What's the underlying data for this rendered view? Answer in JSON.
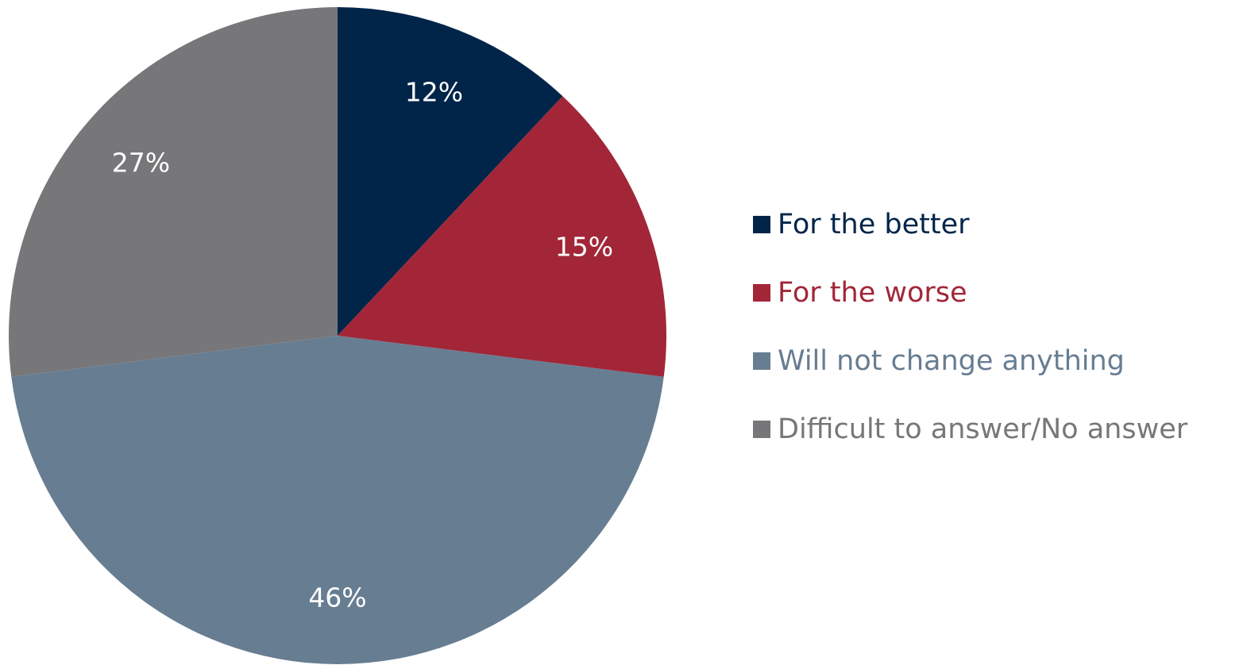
{
  "chart_data": {
    "type": "pie",
    "title": "",
    "start_angle_deg": 0,
    "direction": "clockwise",
    "legend_position": "right",
    "slices": [
      {
        "name": "For the better",
        "value": 12,
        "label": "12%",
        "color": "#002549"
      },
      {
        "name": "For the worse",
        "value": 15,
        "label": "15%",
        "color": "#A22638"
      },
      {
        "name": "Will not change anything",
        "value": 46,
        "label": "46%",
        "color": "#677D91"
      },
      {
        "name": "Difficult to answer/No answer",
        "value": 27,
        "label": "27%",
        "color": "#77777A"
      }
    ]
  }
}
